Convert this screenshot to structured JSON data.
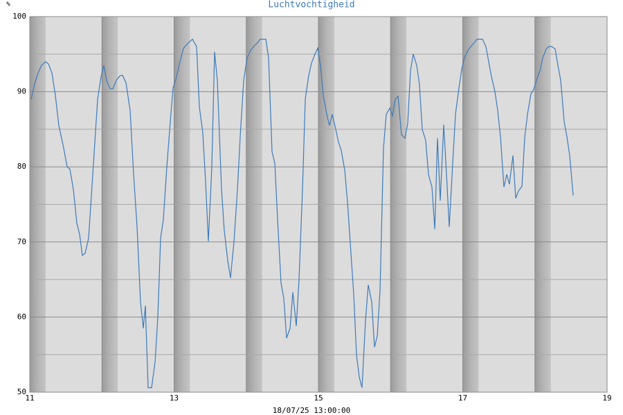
{
  "chart_data": {
    "type": "line",
    "title": "Luchtvochtigheid",
    "y_label": "%",
    "x_label": "18/07/25 13:00:00",
    "xlim": [
      11,
      19
    ],
    "xticks": [
      11,
      13,
      15,
      17,
      19
    ],
    "xminor": [
      12,
      14,
      16,
      18
    ],
    "ylim": [
      50,
      100
    ],
    "yticks": [
      50,
      60,
      70,
      80,
      90,
      100
    ],
    "yminor": [
      55,
      65,
      75,
      85,
      95
    ],
    "grid": true,
    "color": "#3d7ab8",
    "x": [
      11.019,
      11.067,
      11.115,
      11.163,
      11.221,
      11.259,
      11.307,
      11.355,
      11.403,
      11.47,
      11.518,
      11.556,
      11.604,
      11.652,
      11.691,
      11.729,
      11.767,
      11.815,
      11.873,
      11.94,
      11.988,
      12.026,
      12.065,
      12.113,
      12.151,
      12.199,
      12.247,
      12.285,
      12.333,
      12.391,
      12.439,
      12.487,
      12.535,
      12.573,
      12.602,
      12.64,
      12.688,
      12.736,
      12.775,
      12.813,
      12.851,
      12.899,
      12.947,
      12.986,
      13.034,
      13.082,
      13.13,
      13.177,
      13.254,
      13.312,
      13.35,
      13.398,
      13.436,
      13.475,
      13.523,
      13.561,
      13.6,
      13.657,
      13.695,
      13.743,
      13.782,
      13.83,
      13.878,
      13.916,
      13.964,
      14.012,
      14.06,
      14.118,
      14.156,
      14.194,
      14.271,
      14.309,
      14.357,
      14.396,
      14.434,
      14.482,
      14.52,
      14.559,
      14.607,
      14.645,
      14.693,
      14.731,
      14.779,
      14.818,
      14.866,
      14.904,
      14.952,
      14.99,
      15.029,
      15.067,
      15.115,
      15.153,
      15.192,
      15.24,
      15.278,
      15.317,
      15.365,
      15.403,
      15.451,
      15.489,
      15.528,
      15.566,
      15.604,
      15.652,
      15.691,
      15.739,
      15.777,
      15.815,
      15.854,
      15.902,
      15.94,
      15.988,
      16.026,
      16.065,
      16.103,
      16.151,
      16.199,
      16.237,
      16.276,
      16.314,
      16.362,
      16.4,
      16.439,
      16.487,
      16.525,
      16.573,
      16.612,
      16.65,
      16.688,
      16.736,
      16.775,
      16.813,
      16.861,
      16.899,
      16.947,
      16.986,
      17.024,
      17.072,
      17.11,
      17.158,
      17.197,
      17.273,
      17.321,
      17.36,
      17.398,
      17.446,
      17.484,
      17.523,
      17.571,
      17.609,
      17.647,
      17.695,
      17.734,
      17.772,
      17.82,
      17.859,
      17.897,
      17.945,
      17.983,
      18.022,
      18.07,
      18.108,
      18.156,
      18.194,
      18.233,
      18.281,
      18.319,
      18.357,
      18.405,
      18.444,
      18.482,
      18.53
    ],
    "values": [
      89,
      91,
      92.5,
      93.5,
      94,
      93.7,
      92.5,
      89.5,
      85.5,
      82.5,
      80,
      79.7,
      77,
      72.5,
      71,
      68.2,
      68.5,
      70.5,
      79,
      89,
      92,
      93.5,
      91.5,
      90.4,
      90.4,
      91.5,
      92.1,
      92.2,
      91.2,
      87.5,
      79,
      72,
      62,
      58.5,
      61.5,
      50.6,
      50.6,
      54,
      60,
      70.5,
      73,
      80,
      86,
      90.5,
      92,
      94,
      95.8,
      96.3,
      97,
      96,
      88,
      84.5,
      78,
      70.1,
      80,
      95.3,
      91.5,
      77,
      71.5,
      67.5,
      65.2,
      70,
      77,
      84,
      91.5,
      94.5,
      95.5,
      96.2,
      96.5,
      97,
      97,
      94.5,
      82,
      80.5,
      73,
      64.5,
      62.5,
      57.2,
      58.5,
      63.3,
      58.8,
      65,
      77,
      89,
      92.2,
      93.8,
      95,
      95.8,
      93.5,
      89.5,
      87,
      85.5,
      87,
      85,
      83.3,
      82.2,
      79.5,
      75.3,
      68.5,
      63,
      55,
      52,
      50.6,
      59.5,
      64.3,
      62,
      56,
      57.5,
      63.5,
      82.5,
      87,
      87.8,
      86.8,
      89,
      89.4,
      84.3,
      83.8,
      85.8,
      92.8,
      95,
      93.5,
      91,
      85,
      83.5,
      79,
      77.3,
      71.7,
      83.8,
      75.5,
      85.6,
      79,
      72,
      80.5,
      87,
      90.5,
      93,
      94.5,
      95.5,
      96,
      96.5,
      97,
      97,
      96,
      94,
      92,
      90,
      87.5,
      84,
      77.3,
      79,
      77.7,
      81.5,
      75.8,
      76.8,
      77.4,
      84,
      87,
      89.7,
      90.3,
      91.5,
      92.8,
      94.5,
      95.7,
      96,
      96,
      95.7,
      93.5,
      91.5,
      86,
      84,
      81.5,
      76.2
    ]
  }
}
